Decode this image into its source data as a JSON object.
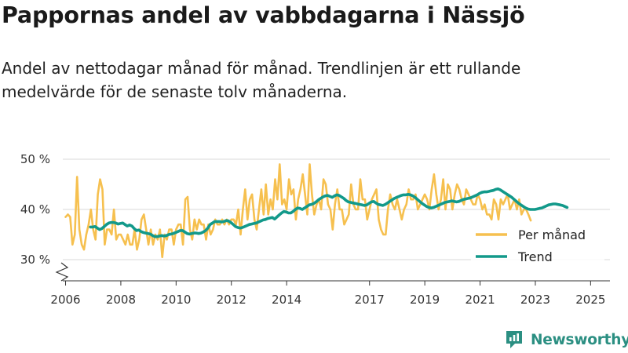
{
  "title": "Pappornas andel av vabbdagarna i Nässjö",
  "subtitle": "Andel av nettodagar månad för månad. Trendlinjen är ett rullande medelvärde för de senaste tolv månaderna.",
  "brand": "Newsworthy",
  "colors": {
    "monthly": "#f6c04f",
    "trend": "#12998a",
    "grid": "#d9d9d9",
    "axis": "#333333",
    "brand": "#2b8f82"
  },
  "chart_data": {
    "type": "line",
    "title": "Pappornas andel av vabbdagarna i Nässjö",
    "xlabel": "",
    "ylabel": "",
    "ylim": [
      30,
      50
    ],
    "yticks": [
      30,
      40,
      50
    ],
    "ytick_labels": [
      "30 %",
      "40 %",
      "50 %"
    ],
    "xlim": [
      2005.9,
      2025.7
    ],
    "xticks": [
      2006,
      2008,
      2010,
      2012,
      2014,
      2017,
      2019,
      2021,
      2023,
      2025
    ],
    "xtick_labels": [
      "2006",
      "2008",
      "2010",
      "2012",
      "2014",
      "2017",
      "2019",
      "2021",
      "2023",
      "2025"
    ],
    "grid": true,
    "y_axis_break": true,
    "legend": {
      "position": "bottom-right",
      "entries": [
        "Per månad",
        "Trend"
      ]
    },
    "series": [
      {
        "name": "Per månad",
        "x_start": 2006.0,
        "x_step": 0.08333,
        "values": [
          38.5,
          39,
          38.5,
          33,
          35,
          46.5,
          36,
          33,
          32,
          35,
          37,
          40,
          36,
          34,
          43,
          46,
          44,
          33,
          36,
          36,
          35,
          40,
          34,
          35,
          35,
          34,
          33,
          35,
          33,
          33,
          36,
          32,
          34,
          38,
          39,
          36,
          33,
          36,
          33,
          35,
          34,
          36,
          30.5,
          35,
          34,
          36,
          36,
          33,
          36,
          37,
          37,
          33,
          42,
          42.5,
          36,
          34,
          38,
          36,
          38,
          37,
          37,
          34,
          37,
          35,
          36,
          38,
          37,
          37,
          38,
          37,
          38,
          37,
          38,
          38,
          37,
          40,
          35,
          40,
          44,
          38,
          42,
          43,
          38,
          36,
          40,
          44,
          39,
          45,
          39,
          42,
          40,
          46,
          42,
          49,
          41,
          42,
          40,
          46,
          43,
          44,
          38,
          42,
          44,
          47,
          43,
          39,
          49,
          43,
          39,
          41,
          42,
          40,
          46,
          45,
          41,
          40,
          36,
          41,
          44,
          40,
          40,
          37,
          38,
          39,
          45,
          41,
          40,
          40,
          46,
          42,
          42,
          38,
          40,
          42,
          43,
          44,
          38,
          36,
          35,
          35,
          40,
          43,
          41,
          40,
          42,
          40,
          38,
          40,
          41,
          44,
          42,
          42,
          43,
          40,
          41,
          42,
          43,
          42,
          40,
          44,
          47,
          43,
          40,
          42,
          46,
          40,
          45,
          44,
          40,
          43,
          45,
          44,
          42,
          41,
          44,
          43,
          42,
          41,
          41,
          43,
          42,
          40,
          41,
          39,
          39,
          38,
          42,
          41,
          38,
          42,
          41,
          42,
          43,
          40,
          41,
          42,
          40,
          42,
          39,
          40,
          40,
          39,
          37.8
        ],
        "color": "#f6c04f"
      },
      {
        "name": "Trend",
        "x_start": 2006.9,
        "x_step": 0.08333,
        "values": [
          36.5,
          36.5,
          36.6,
          36.3,
          36.0,
          36.2,
          36.6,
          37.0,
          37.3,
          37.4,
          37.4,
          37.3,
          37.1,
          37.2,
          37.3,
          37.0,
          36.7,
          36.9,
          36.7,
          36.2,
          35.8,
          35.9,
          35.6,
          35.4,
          35.3,
          35.2,
          35.1,
          34.8,
          34.6,
          34.6,
          34.7,
          34.8,
          34.7,
          34.8,
          35.0,
          35.1,
          35.2,
          35.4,
          35.6,
          35.8,
          35.8,
          35.5,
          35.2,
          35.1,
          35.2,
          35.3,
          35.3,
          35.2,
          35.3,
          35.5,
          35.8,
          36.3,
          37.0,
          37.3,
          37.6,
          37.6,
          37.6,
          37.5,
          37.6,
          37.8,
          37.7,
          37.4,
          37.0,
          36.6,
          36.4,
          36.3,
          36.4,
          36.6,
          36.8,
          37.0,
          37.1,
          37.2,
          37.3,
          37.5,
          37.7,
          37.9,
          38.0,
          38.2,
          38.3,
          38.4,
          38.1,
          38.5,
          38.9,
          39.3,
          39.6,
          39.5,
          39.3,
          39.3,
          39.6,
          40.0,
          40.3,
          40.2,
          40.0,
          40.3,
          40.6,
          40.9,
          41.0,
          41.2,
          41.5,
          41.9,
          42.2,
          42.5,
          42.7,
          42.8,
          42.6,
          42.4,
          42.7,
          42.9,
          42.8,
          42.5,
          42.2,
          41.8,
          41.5,
          41.4,
          41.3,
          41.2,
          41.1,
          41.0,
          40.9,
          40.8,
          40.9,
          41.2,
          41.5,
          41.6,
          41.3,
          41.0,
          40.9,
          40.8,
          41.0,
          41.3,
          41.6,
          41.9,
          42.2,
          42.4,
          42.6,
          42.8,
          42.9,
          42.9,
          43.0,
          42.9,
          42.7,
          42.4,
          42.0,
          41.6,
          41.2,
          40.9,
          40.6,
          40.4,
          40.3,
          40.4,
          40.6,
          40.8,
          41.0,
          41.2,
          41.4,
          41.5,
          41.6,
          41.7,
          41.6,
          41.5,
          41.6,
          41.8,
          42.0,
          42.1,
          42.2,
          42.3,
          42.5,
          42.7,
          42.9,
          43.2,
          43.4,
          43.5,
          43.5,
          43.6,
          43.7,
          43.8,
          44.0,
          44.1,
          43.9,
          43.6,
          43.3,
          43.0,
          42.7,
          42.4,
          42.0,
          41.6,
          41.2,
          40.9,
          40.6,
          40.3,
          40.1,
          40.0,
          40.0,
          40.0,
          40.1,
          40.2,
          40.3,
          40.5,
          40.7,
          40.9,
          41.0,
          41.1,
          41.1,
          41.0,
          40.9,
          40.8,
          40.6,
          40.4
        ],
        "color": "#12998a"
      }
    ]
  }
}
